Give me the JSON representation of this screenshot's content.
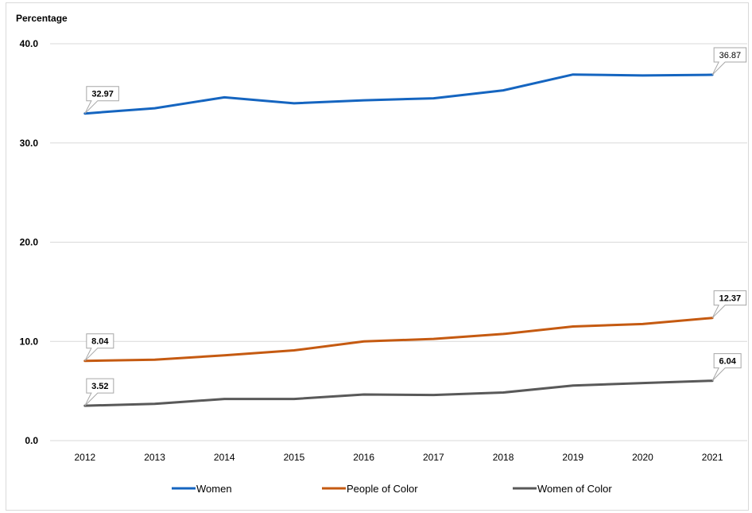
{
  "chart_data": {
    "type": "line",
    "title": "",
    "ylabel": "Percentage",
    "xlabel": "",
    "ylim": [
      0,
      40
    ],
    "y_ticks": [
      "0.0",
      "10.0",
      "20.0",
      "30.0",
      "40.0"
    ],
    "categories": [
      "2012",
      "2013",
      "2014",
      "2015",
      "2016",
      "2017",
      "2018",
      "2019",
      "2020",
      "2021"
    ],
    "grid": true,
    "legend_position": "bottom",
    "series": [
      {
        "name": "Women",
        "color": "#1565c0",
        "values": [
          32.97,
          33.5,
          34.6,
          34.0,
          34.3,
          34.5,
          35.3,
          36.9,
          36.8,
          36.87
        ],
        "labels": [
          {
            "index": 0,
            "text": "32.97",
            "bold": true
          },
          {
            "index": 9,
            "text": "36.87",
            "bold": false
          }
        ]
      },
      {
        "name": "People of Color",
        "color": "#c55a11",
        "values": [
          8.04,
          8.15,
          8.6,
          9.1,
          10.0,
          10.25,
          10.75,
          11.5,
          11.75,
          12.37
        ],
        "labels": [
          {
            "index": 0,
            "text": "8.04",
            "bold": true
          },
          {
            "index": 9,
            "text": "12.37",
            "bold": true
          }
        ]
      },
      {
        "name": "Women of Color",
        "color": "#595959",
        "values": [
          3.52,
          3.7,
          4.2,
          4.2,
          4.65,
          4.6,
          4.85,
          5.55,
          5.8,
          6.04
        ],
        "labels": [
          {
            "index": 0,
            "text": "3.52",
            "bold": true
          },
          {
            "index": 9,
            "text": "6.04",
            "bold": true
          }
        ]
      }
    ]
  }
}
